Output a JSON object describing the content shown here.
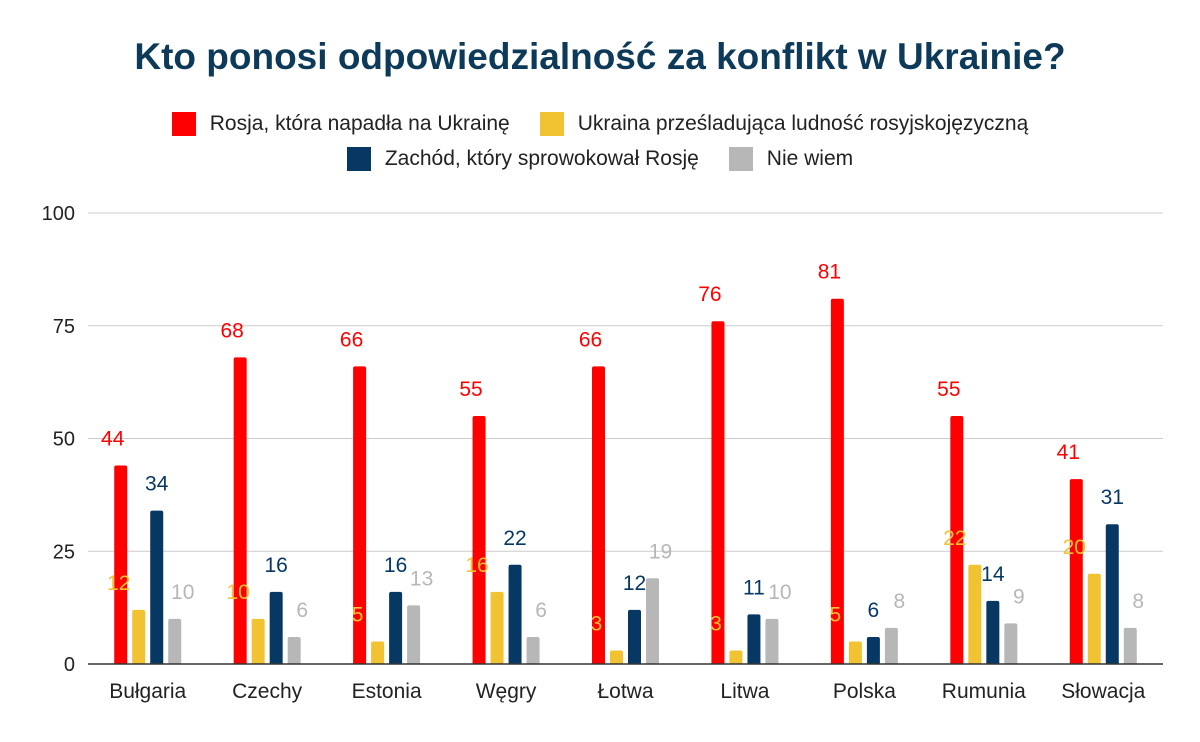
{
  "title": "Kto ponosi odpowiedzialność za konflikt w Ukrainie?",
  "colors": {
    "russia": "#ff0000",
    "ukraine": "#f1c232",
    "west": "#073763",
    "unknown": "#b7b7b7",
    "title": "#0e3a5a"
  },
  "chart_data": {
    "type": "bar",
    "title": "Kto ponosi odpowiedzialność za konflikt w Ukrainie?",
    "categories": [
      "Bułgaria",
      "Czechy",
      "Estonia",
      "Węgry",
      "Łotwa",
      "Litwa",
      "Polska",
      "Rumunia",
      "Słowacja"
    ],
    "series": [
      {
        "name": "Rosja, która napadła na Ukrainę",
        "color": "#ff0000",
        "values": [
          44,
          68,
          66,
          55,
          66,
          76,
          81,
          55,
          41
        ]
      },
      {
        "name": "Ukraina prześladująca ludność rosyjskojęzyczną",
        "color": "#f1c232",
        "values": [
          12,
          10,
          5,
          16,
          3,
          3,
          5,
          22,
          20
        ]
      },
      {
        "name": "Zachód, który sprowokował Rosję",
        "color": "#073763",
        "values": [
          34,
          16,
          16,
          22,
          12,
          11,
          6,
          14,
          31
        ]
      },
      {
        "name": "Nie wiem",
        "color": "#b7b7b7",
        "values": [
          10,
          6,
          13,
          6,
          19,
          10,
          8,
          9,
          8
        ]
      }
    ],
    "ylim": [
      0,
      100
    ],
    "yticks": [
      "0",
      "25",
      "50",
      "75",
      "100"
    ],
    "grid": true,
    "legend": "top-center",
    "data_labels": true
  }
}
